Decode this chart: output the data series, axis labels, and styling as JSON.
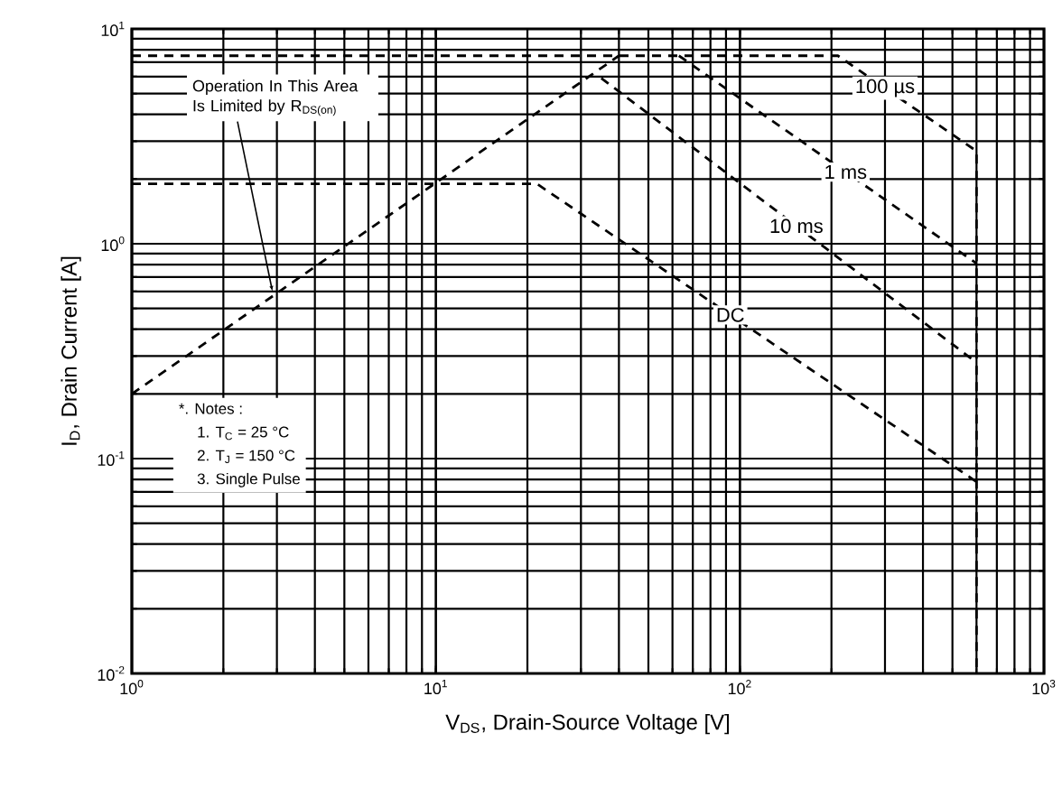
{
  "chart_data": {
    "type": "line",
    "log": "xy",
    "xlabel": "V$_{DS}$, Drain-Source Voltage [V]",
    "ylabel": "I$_{D}$, Drain Current [A]",
    "xlim": [
      1,
      1000
    ],
    "ylim": [
      0.01,
      10
    ],
    "xticks": [
      {
        "value": 1,
        "label": "10$^{0}$"
      },
      {
        "value": 10,
        "label": "10$^{1}$"
      },
      {
        "value": 100,
        "label": "10$^{2}$"
      },
      {
        "value": 1000,
        "label": "10$^{3}$"
      }
    ],
    "yticks": [
      {
        "value": 0.01,
        "label": "10$^{-2}$"
      },
      {
        "value": 0.1,
        "label": "10$^{-1}$"
      },
      {
        "value": 1,
        "label": "10$^{0}$"
      },
      {
        "value": 10,
        "label": "10$^{1}$"
      }
    ],
    "grid": true,
    "line_style": "dashed",
    "marker": "none",
    "series": [
      {
        "color": "#000000",
        "x": [
          1,
          40
        ],
        "values": [
          0.2,
          7.5
        ]
      },
      {
        "name": "100 µs",
        "color": "#000000",
        "x": [
          1,
          210,
          600,
          600
        ],
        "values": [
          7.5,
          7.5,
          2.7,
          0.01
        ]
      },
      {
        "name": "1 ms",
        "color": "#000000",
        "x": [
          63,
          600
        ],
        "values": [
          7.5,
          0.81
        ]
      },
      {
        "name": "10 ms",
        "color": "#000000",
        "x": [
          35,
          600
        ],
        "values": [
          5.9,
          0.28
        ]
      },
      {
        "name": "DC",
        "color": "#000000",
        "x": [
          1,
          21.5,
          600
        ],
        "values": [
          1.9,
          1.9,
          0.078
        ]
      }
    ],
    "annotations": [
      {
        "text": "Operation In This Area Is Limited by R$_{DS(on)}$",
        "x": 2.9,
        "y": 0.6
      },
      "*. Notes :",
      "1. T$_{C}$ = 25 °C",
      "2. T$_{J}$ = 150 °C",
      "3. Single Pulse"
    ]
  }
}
